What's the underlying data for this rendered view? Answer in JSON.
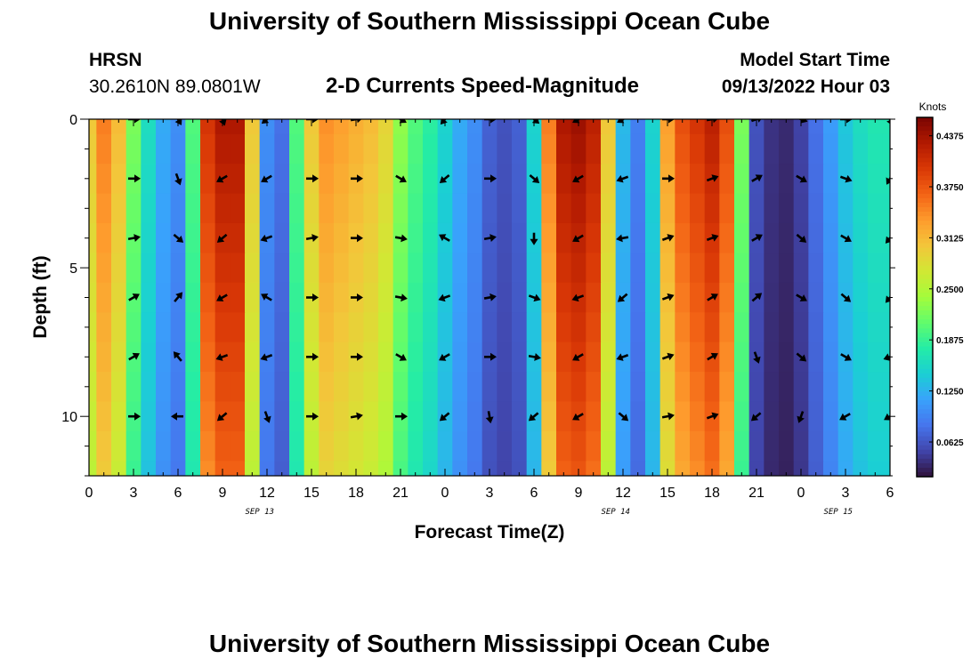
{
  "page": {
    "title": "University of Southern Mississippi Ocean Cube",
    "footer_title": "University of Southern Mississippi Ocean Cube",
    "station_code": "HRSN",
    "station_coords": "30.2610N  89.0801W",
    "model_start_label": "Model Start Time",
    "model_start_value": "09/13/2022 Hour 03"
  },
  "colors": {
    "colormap": [
      "#30123b",
      "#4145ab",
      "#4675ed",
      "#39a2fc",
      "#1bcfd4",
      "#24eca6",
      "#61fc6c",
      "#a4fc3b",
      "#d1e834",
      "#f3c63a",
      "#fe9b2d",
      "#f36315",
      "#d93806",
      "#b11901",
      "#7a0402"
    ]
  },
  "chart_data": {
    "type": "heatmap",
    "title": "2-D Currents Speed-Magnitude",
    "xlabel": "Forecast Time(Z)",
    "ylabel": "Depth (ft)",
    "x_tick_labels": [
      "0",
      "3",
      "6",
      "9",
      "12",
      "15",
      "18",
      "21",
      "0",
      "3",
      "6",
      "9",
      "12",
      "15",
      "18",
      "21",
      "0",
      "3",
      "6"
    ],
    "x_tick_hours": [
      0,
      3,
      6,
      9,
      12,
      15,
      18,
      21,
      24,
      27,
      30,
      33,
      36,
      39,
      42,
      45,
      48,
      51,
      54
    ],
    "date_labels": [
      {
        "text": "SEP 13",
        "hour": 11.5
      },
      {
        "text": "SEP 14",
        "hour": 35.5
      },
      {
        "text": "SEP 15",
        "hour": 50.5
      }
    ],
    "xlim": [
      0,
      54
    ],
    "y_tick_labels": [
      "0",
      "5",
      "10"
    ],
    "y_tick_values": [
      0,
      5,
      10
    ],
    "ylim": [
      0,
      12
    ],
    "colorbar": {
      "label": "Knots",
      "min": 0.02,
      "max": 0.46,
      "tick_labels": [
        "0.0625",
        "0.1250",
        "0.1875",
        "0.2500",
        "0.3125",
        "0.3750",
        "0.4375"
      ],
      "tick_values": [
        0.0625,
        0.125,
        0.1875,
        0.25,
        0.3125,
        0.375,
        0.4375
      ]
    },
    "depths_ft": [
      0,
      1,
      2,
      3,
      4,
      5,
      6,
      7,
      8,
      9,
      10,
      11,
      12
    ],
    "hours": [
      0,
      1,
      2,
      3,
      4,
      5,
      6,
      7,
      8,
      9,
      10,
      11,
      12,
      13,
      14,
      15,
      16,
      17,
      18,
      19,
      20,
      21,
      22,
      23,
      24,
      25,
      26,
      27,
      28,
      29,
      30,
      31,
      32,
      33,
      34,
      35,
      36,
      37,
      38,
      39,
      40,
      41,
      42,
      43,
      44,
      45,
      46,
      47,
      48,
      49,
      50,
      51,
      52,
      53,
      54
    ],
    "speed_profile_knots": [
      0.3,
      0.35,
      0.31,
      0.22,
      0.16,
      0.12,
      0.1,
      0.2,
      0.4,
      0.43,
      0.43,
      0.3,
      0.1,
      0.08,
      0.2,
      0.3,
      0.34,
      0.33,
      0.32,
      0.31,
      0.29,
      0.23,
      0.2,
      0.18,
      0.15,
      0.12,
      0.1,
      0.07,
      0.06,
      0.07,
      0.15,
      0.35,
      0.43,
      0.44,
      0.42,
      0.3,
      0.13,
      0.09,
      0.15,
      0.33,
      0.38,
      0.4,
      0.42,
      0.38,
      0.22,
      0.06,
      0.04,
      0.035,
      0.05,
      0.08,
      0.11,
      0.14,
      0.16,
      0.17,
      0.17
    ],
    "vectors": {
      "hours": [
        3,
        6,
        9,
        12,
        15,
        18,
        21,
        24,
        27,
        30,
        33,
        36,
        39,
        42,
        45,
        48,
        51,
        54
      ],
      "depths_ft": [
        0,
        2,
        4,
        6,
        8,
        10
      ],
      "direction_deg": [
        [
          90,
          150,
          160,
          230,
          90,
          80,
          120,
          220,
          90,
          130,
          240,
          240,
          90,
          80,
          70,
          110,
          90,
          160
        ],
        [
          90,
          160,
          240,
          240,
          90,
          90,
          120,
          230,
          90,
          130,
          240,
          250,
          90,
          70,
          60,
          120,
          110,
          210
        ],
        [
          80,
          130,
          230,
          250,
          80,
          90,
          100,
          300,
          80,
          180,
          240,
          260,
          70,
          70,
          60,
          130,
          120,
          220
        ],
        [
          60,
          40,
          240,
          300,
          90,
          90,
          100,
          250,
          80,
          110,
          250,
          230,
          70,
          60,
          50,
          120,
          130,
          220
        ],
        [
          60,
          320,
          250,
          250,
          90,
          90,
          120,
          240,
          90,
          100,
          240,
          250,
          70,
          60,
          160,
          130,
          120,
          250
        ],
        [
          90,
          270,
          230,
          160,
          90,
          80,
          90,
          230,
          170,
          230,
          240,
          130,
          80,
          70,
          230,
          200,
          240,
          240
        ]
      ]
    }
  }
}
